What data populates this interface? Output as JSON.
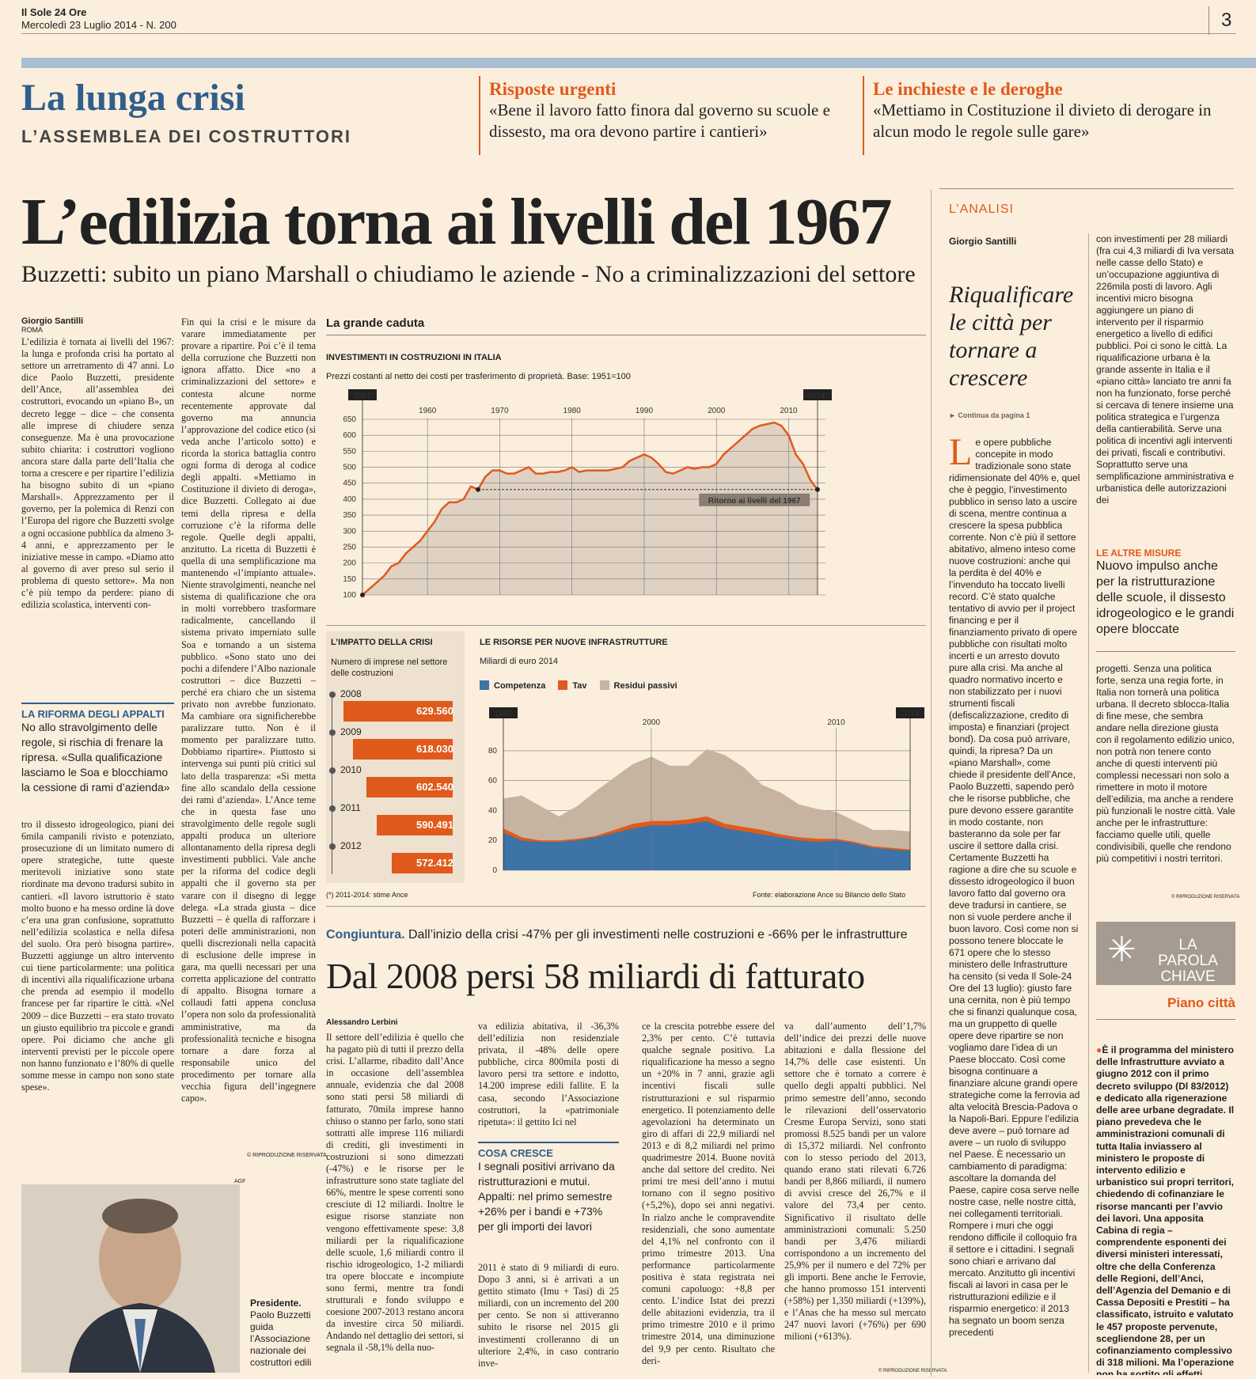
{
  "masthead": {
    "paper": "Il Sole 24 Ore",
    "date": "Mercoledì 23 Luglio 2014 - N. 200",
    "page_number": "3"
  },
  "section": {
    "title": "La lunga crisi",
    "subtitle": "L’ASSEMBLEA DEI COSTRUTTORI"
  },
  "teasers": [
    {
      "kicker": "Risposte urgenti",
      "quote": "«Bene il lavoro fatto finora dal governo su scuole e dissesto, ma ora devono partire i cantieri»"
    },
    {
      "kicker": "Le inchieste e le deroghe",
      "quote": "«Mettiamo in Costituzione il divieto di derogare in alcun modo le regole sulle gare»"
    }
  ],
  "headline": "L’edilizia torna ai livelli del 1967",
  "subheadline": "Buzzetti: subito un piano Marshall o chiudiamo le aziende - No a criminalizzazioni del settore",
  "main_article": {
    "author": "Giorgio Santilli",
    "place": "ROMA",
    "col1_a": "L’edilizia è tornata ai livelli del 1967: la lunga e profonda crisi ha portato al settore un arretramento di 47 anni. Lo dice Paolo Buzzetti, presidente dell’Ance, all’assemblea dei costruttori, evocando un «piano B», un decreto legge – dice – che consenta alle imprese di chiudere senza conseguenze. Ma è una provocazione subito chiarita: i costruttori vogliono ancora stare dalla parte dell’Italia che torna a crescere e per ripartire l’edilizia ha bisogno subito di un «piano Marshall». Apprezzamento per il governo, per la polemica di Renzi con l’Europa del rigore che Buzzetti svolge a ogni occasione pubblica da almeno 3-4 anni, e apprezzamento per le iniziative messe in campo. «Diamo atto al governo di aver preso sul serio il problema di questo settore». Ma non c’è più tempo da perdere: piano di edilizia scolastica, interventi con-",
    "col1_b": "tro il dissesto idrogeologico, piani dei 6mila campanili rivisto e potenziato, prosecuzione di un limitato numero di opere strategiche, tutte queste meritevoli iniziative sono state riordinate ma devono tradursi subito in cantieri. «Il lavoro istruttorio è stato molto buono e ha messo ordine là dove c’era una gran confusione, soprattutto nell’edilizia scolastica e nella difesa del suolo. Ora però bisogna partire». Buzzetti aggiunge un altro intervento cui tiene particolarmente: una politica di incentivi alla riqualificazione urbana che prenda ad esempio il modello francese per far ripartire le città. «Nel 2009 – dice Buzzetti – era stato trovato un giusto equilibrio tra piccole e grandi opere. Poi diciamo che anche gli interventi previsti per le piccole opere non hanno funzionato e l’80% di quelle somme messe in campo non sono state spese».",
    "col2": "Fin qui la crisi e le misure da varare immediatamente per provare a ripartire. Poi c’è il tema della corruzione che Buzzetti non ignora affatto. Dice «no a criminalizzazioni del settore» e contesta alcune norme recentemente approvate dal governo ma annuncia l’approvazione del codice etico (si veda anche l’articolo sotto) e ricorda la storica battaglia contro ogni forma di deroga al codice degli appalti. «Mettiamo in Costituzione il divieto di deroga», dice Buzzetti. Collegato ai due temi della ripresa e della corruzione c’è la riforma delle regole. Quelle degli appalti, anzitutto. La ricetta di Buzzetti è quella di una semplificazione ma mantenendo «l’impianto attuale». Niente stravolgimenti, neanche nel sistema di qualificazione che ora in molti vorrebbero trasformare radicalmente, cancellando il sistema privato imperniato sulle Soa e tornando a un sistema pubblico. «Sono stato uno dei pochi a difendere l’Albo nazionale costruttori – dice Buzzetti – perché era chiaro che un sistema privato non avrebbe funzionato. Ma cambiare ora significherebbe paralizzare tutto. Non è il momento per paralizzare tutto. Dobbiamo ripartire». Piuttosto si intervenga sui punti più critici sul lato della trasparenza: «Si metta fine allo scandalo della cessione dei rami d’azienda». L’Ance teme che in questa fase uno stravolgimento delle regole sugli appalti produca un ulteriore allontanamento della ripresa degli investimenti pubblici. Vale anche per la riforma del codice degli appalti che il governo sta per varare con il disegno di legge delega. «La strada giusta – dice Buzzetti – è quella di rafforzare i poteri delle amministrazioni, non quelli discrezionali nella capacità di esclusione delle imprese in gara, ma quelli necessari per una corretta applicazione del contratto di appalto. Bisogna tornare a collaudi fatti appena conclusa l’opera non solo da professionalità amministrative, ma da professionalità tecniche e bisogna tornare a dare forza al responsabile unico del procedimento per tornare alla vecchia figura dell’ingegnere capo».",
    "copyright": "© RIPRODUZIONE RISERVATA"
  },
  "sidebox": {
    "title": "LA RIFORMA DEGLI APPALTI",
    "text": "No allo stravolgimento delle regole, si rischia di frenare la ripresa. «Sulla qualificazione lasciamo le Soa e blocchiamo la cessione di rami d’azienda»"
  },
  "photo": {
    "credit": "AGF",
    "caption_bold": "Presidente.",
    "caption": "Paolo Buzzetti guida l’Associazione nazionale dei costruttori edili"
  },
  "infographic": {
    "title": "La grande caduta",
    "source": "Fonte: elaborazione Ance su Bilancio dello Stato",
    "note": "(*) 2011-2014: stime Ance"
  },
  "chart_data": [
    {
      "type": "area",
      "title": "INVESTIMENTI IN COSTRUZIONI IN ITALIA",
      "subtitle": "Prezzi costanti al netto dei costi per trasferimento di proprietà. Base: 1951=100",
      "x": [
        1951,
        1952,
        1953,
        1954,
        1955,
        1956,
        1957,
        1958,
        1959,
        1960,
        1961,
        1962,
        1963,
        1964,
        1965,
        1966,
        1967,
        1968,
        1969,
        1970,
        1971,
        1972,
        1973,
        1974,
        1975,
        1976,
        1977,
        1978,
        1979,
        1980,
        1981,
        1982,
        1983,
        1984,
        1985,
        1986,
        1987,
        1988,
        1989,
        1990,
        1991,
        1992,
        1993,
        1994,
        1995,
        1996,
        1997,
        1998,
        1999,
        2000,
        2001,
        2002,
        2003,
        2004,
        2005,
        2006,
        2007,
        2008,
        2009,
        2010,
        2011,
        2012,
        2013,
        2014
      ],
      "y": [
        100,
        120,
        140,
        160,
        190,
        200,
        230,
        250,
        270,
        300,
        330,
        370,
        390,
        390,
        400,
        440,
        430,
        470,
        490,
        490,
        480,
        480,
        490,
        500,
        480,
        480,
        485,
        485,
        490,
        500,
        485,
        490,
        490,
        490,
        490,
        495,
        500,
        520,
        530,
        540,
        530,
        510,
        485,
        480,
        490,
        500,
        495,
        500,
        500,
        510,
        540,
        560,
        580,
        600,
        620,
        630,
        635,
        640,
        630,
        600,
        540,
        510,
        460,
        430
      ],
      "xticks": [
        1960,
        1970,
        1980,
        1990,
        2000,
        2010
      ],
      "yticks": [
        100,
        150,
        200,
        250,
        300,
        350,
        400,
        450,
        500,
        550,
        600,
        650
      ],
      "ylim": [
        100,
        650
      ],
      "badges": [
        "1951",
        "2014*"
      ],
      "annotation": "Ritorno ai livelli del 1967",
      "colors": {
        "line": "#e05a1c",
        "area": "#dfd2c3"
      }
    },
    {
      "type": "bar",
      "title": "L’IMPATTO DELLA CRISI",
      "subtitle": "Numero di imprese nel settore delle costruzioni",
      "categories": [
        "2008",
        "2009",
        "2010",
        "2011",
        "2012"
      ],
      "values": [
        629560,
        618030,
        602540,
        590491,
        572412
      ],
      "labels": [
        "629.560",
        "618.030",
        "602.540",
        "590.491",
        "572.412"
      ],
      "colors": {
        "bar": "#e05a1c"
      }
    },
    {
      "type": "area",
      "title": "LE RISORSE PER NUOVE INFRASTRUTTURE",
      "subtitle": "Miliardi di euro 2014",
      "x": [
        1992,
        1993,
        1994,
        1995,
        1996,
        1997,
        1998,
        1999,
        2000,
        2001,
        2002,
        2003,
        2004,
        2005,
        2006,
        2007,
        2008,
        2009,
        2010,
        2011,
        2012,
        2013,
        2014
      ],
      "series": [
        {
          "name": "Competenza",
          "values": [
            25,
            20,
            19,
            19,
            20,
            22,
            25,
            28,
            30,
            30,
            31,
            33,
            28,
            26,
            24,
            22,
            20,
            19,
            20,
            18,
            15,
            14,
            13
          ],
          "color": "#3d73a6"
        },
        {
          "name": "Tav",
          "values": [
            3,
            2,
            1,
            1,
            1,
            1,
            2,
            3,
            3,
            3,
            3,
            3,
            3,
            3,
            3,
            2,
            2,
            2,
            1,
            1,
            1,
            1,
            1
          ],
          "color": "#e05a1c"
        },
        {
          "name": "Residui passivi",
          "values": [
            20,
            28,
            23,
            16,
            22,
            30,
            35,
            40,
            43,
            37,
            36,
            45,
            46,
            40,
            30,
            28,
            22,
            20,
            18,
            14,
            11,
            12,
            12
          ],
          "color": "#c6b4a0"
        }
      ],
      "xticks": [
        2000,
        2010
      ],
      "yticks": [
        0,
        20,
        40,
        60,
        80
      ],
      "ylim": [
        0,
        90
      ],
      "badges": [
        "1992",
        "2014"
      ]
    }
  ],
  "second_article": {
    "kicker": "Congiuntura.",
    "kicker_text": "Dall’inizio della crisi -47% per gli investimenti nelle costruzioni e -66% per le infrastrutture",
    "headline": "Dal 2008 persi 58 miliardi di fatturato",
    "author": "Alessandro Lerbini",
    "col1": "Il settore dell’edilizia è quello che ha pagato più di tutti il prezzo della crisi. L’allarme, ribadito dall’Ance in occasione dell’assemblea annuale, evidenzia che dal 2008 sono stati persi 58 miliardi di fatturato, 70mila imprese hanno chiuso o stanno per farlo, sono stati sottratti alle imprese 116 miliardi di crediti, gli investimenti in costruzioni si sono dimezzati (-47%) e le risorse per le infrastrutture sono state tagliate del 66%, mentre le spese correnti sono cresciute di 12 miliardi. Inoltre le esigue risorse stanziate non vengono effettivamente spese: 3,8 miliardi per la riqualificazione delle scuole, 1,6 miliardi contro il rischio idrogeologico, 1-2 miliardi tra opere bloccate e incompiute sono fermi, mentre tra fondi strutturali e fondo sviluppo e coesione 2007-2013 restano ancora da investire circa 50 miliardi. Andando nel dettaglio dei settori, si segnala il -58,1% della nuo-",
    "col2": "va edilizia abitativa, il -36,3% dell’edilizia non residenziale privata, il -48% delle opere pubbliche, circa 800mila posti di lavoro persi tra settore e indotto, 14.200 imprese edili fallite. E la casa, secondo l’Associazione costruttori, la «patrimoniale ripetuta»: il gettito Ici nel",
    "col2b": "2011 è stato di 9 miliardi di euro. Dopo 3 anni, si è arrivati a un gettito stimato (Imu + Tasi) di 25 miliardi, con un incremento del 200 per cento. Se non si attiveranno subito le risorse nel 2015 gli investimenti crolleranno di un ulteriore 2,4%, in caso contrario inve-",
    "col3": "ce la crescita potrebbe essere del 2,3% per cento. C’è tuttavia qualche segnale positivo. La riqualificazione ha messo a segno un +20% in 7 anni, grazie agli incentivi fiscali sulle ristrutturazioni e sul risparmio energetico. Il potenziamento delle agevolazioni ha determinato un giro di affari di 22,9 miliardi nel 2013 e di 8,2 miliardi nel primo quadrimestre 2014. Buone novità anche dal settore del credito. Nei primi tre mesi dell’anno i mutui tornano con il segno positivo (+5,2%), dopo sei anni negativi. In rialzo anche le compravendite residenziali, che sono aumentate del 4,1% nel confronto con il primo trimestre 2013. Una performance particolarmente positiva è stata registrata nei comuni capoluogo: +8,8 per cento. L’indice Istat dei prezzi delle abitazioni evidenzia, tra il primo trimestre 2010 e il primo trimestre 2014, una diminuzione del 9,9 per cento. Risultato che deri-",
    "col4": "va dall’aumento dell’1,7% dell’indice dei prezzi delle nuove abitazioni e dalla flessione del 14,7% delle case esistenti. Un settore che è tornato a correre è quello degli appalti pubblici. Nel primo semestre dell’anno, secondo le rilevazioni dell’osservatorio Cresme Europa Servizi, sono stati promossi 8.525 bandi per un valore di 15,372 miliardi. Nel confronto con lo stesso periodo del 2013, quando erano stati rilevati 6.726 bandi per 8,866 miliardi, il numero di avvisi cresce del 26,7% e il valore del 73,4 per cento. Significativo il risultato delle amministrazioni comunali: 5.250 bandi per 3,476 miliardi corrispondono a un incremento del 25,9% per il numero e del 72% per gli importi. Bene anche le Ferrovie, che hanno promosso 151 interventi (+58%) per 1,350 miliardi (+139%), e l’Anas che ha messo sul mercato 247 nuovi lavori (+76%) per 690 milioni (+613%).",
    "copyright": "© RIPRODUZIONE RISERVATA"
  },
  "cosa_cresce": {
    "title": "COSA CRESCE",
    "text": "I segnali positivi arrivano da ristrutturazioni e mutui. Appalti: nel primo semestre +26% per i bandi e +73% per gli importi dei lavori"
  },
  "analysis": {
    "label": "L’ANALISI",
    "author": "Giorgio Santilli",
    "title": "Riqualificare le città per tornare a crescere",
    "continua": "Continua da pagina 1",
    "dropcap": "L",
    "col1": "e opere pubbliche concepite in modo tradizionale sono state ridimensionate del 40% e, quel che è peggio, l’investimento pubblico in senso lato a uscire di scena, mentre continua a crescere la spesa pubblica corrente. Non c’è più il settore abitativo, almeno inteso come nuove costruzioni: anche qui la perdita è del 40% e l’invenduto ha toccato livelli record. C’è stato qualche tentativo di avvio per il project financing e per il finanziamento privato di opere pubbliche con risultati molto incerti e un arresto dovuto pure alla crisi. Ma anche al quadro normativo incerto e non stabilizzato per i nuovi strumenti fiscali (defiscalizzazione, credito di imposta) e finanziari (project bond). Da cosa può arrivare, quindi, la ripresa? Da un «piano Marshall», come chiede il presidente dell’Ance, Paolo Buzzetti, sapendo però che le risorse pubbliche, che pure devono essere garantite in modo costante, non basteranno da sole per far uscire il settore dalla crisi. Certamente Buzzetti ha ragione a dire che su scuole e dissesto idrogeologico il buon lavoro fatto dal governo ora deve tradursi in cantiere, se non si vuole perdere anche il buon lavoro. Così come non si possono tenere bloccate le 671 opere che lo stesso ministero delle Infrastrutture ha censito (si veda Il Sole-24 Ore del 13 luglio): giusto fare una cernita, non è più tempo che si finanzi qualunque cosa, ma un gruppetto di quelle opere deve ripartire se non vogliamo dare l’idea di un Paese bloccato. Così come bisogna continuare a finanziare alcune grandi opere strategiche come la ferrovia ad alta velocità Brescia-Padova o la Napoli-Bari. Eppure l’edilizia deve avere – può tornare ad avere – un ruolo di sviluppo nel Paese. È necessario un cambiamento di paradigma: ascoltare la domanda del Paese, capire cosa serve nelle nostre case, nelle nostre città, nei collegamenti territoriali. Rompere i muri che oggi rendono difficile il colloquio fra il settore e i cittadini. I segnali sono chiari e arrivano dal mercato. Anzitutto gli incentivi fiscali ai lavori in casa per le ristrutturazioni edilizie e il risparmio energetico: il 2013 ha segnato un boom senza precedenti",
    "col2": "con investimenti per 28 miliardi (fra cui 4,3 miliardi di Iva versata nelle casse dello Stato) e un’occupazione aggiuntiva di 226mila posti di lavoro. Agli incentivi micro bisogna aggiungere un piano di intervento per il risparmio energetico a livello di edifici pubblici. Poi ci sono le città. La riqualificazione urbana è la grande assente in Italia e il «piano città» lanciato tre anni fa non ha funzionato, forse perché si cercava di tenere insieme una politica strategica e l’urgenza della cantierabilità. Serve una politica di incentivi agli interventi dei privati, fiscali e contributivi. Soprattutto serve una semplificazione amministrativa e urbanistica delle autorizzazioni dei",
    "col2b": "progetti. Senza una politica forte, senza una regia forte, in Italia non tornerà una politica urbana. Il decreto sblocca-Italia di fine mese, che sembra andare nella direzione giusta con il regolamento edilizio unico, non potrà non tenere conto anche di questi interventi più complessi necessari non solo a rimettere in moto il motore dell’edilizia, ma anche a rendere più funzionali le nostre città. Vale anche per le infrastrutture: facciamo quelle utili, quelle condivisibili, quelle che rendono più competitivi i nostri territori.",
    "copyright": "© RIPRODUZIONE RISERVATA"
  },
  "altre_misure": {
    "label": "LE ALTRE MISURE",
    "text": "Nuovo impulso anche per la ristrutturazione delle scuole, il dissesto idrogeologico e le grandi opere bloccate"
  },
  "parola_chiave": {
    "label1": "LA PAROLA",
    "label2": "CHIAVE",
    "term": "Piano città",
    "text": "È il programma del ministero delle Infrastrutture avviato a giugno 2012 con il primo decreto sviluppo (Dl 83/2012) e dedicato alla rigenerazione delle aree urbane degradate. Il piano prevedeva che le amministrazioni comunali di tutta Italia inviassero al ministero le proposte di intervento edilizio e urbanistico sui propri territori, chiedendo di cofinanziare le risorse mancanti per l’avvio dei lavori. Una apposita Cabina di regia – comprendente esponenti dei diversi ministeri interessati, oltre che della Conferenza delle Regioni, dell’Anci, dell’Agenzia del Demanio e di Cassa Depositi e Prestiti – ha classificato, istruito e valutato le 457 proposte pervenute, scegliendone 28, per un cofinanziamento complessivo di 318 milioni. Ma l’operazione non ha sortito gli effetti sperati."
  }
}
